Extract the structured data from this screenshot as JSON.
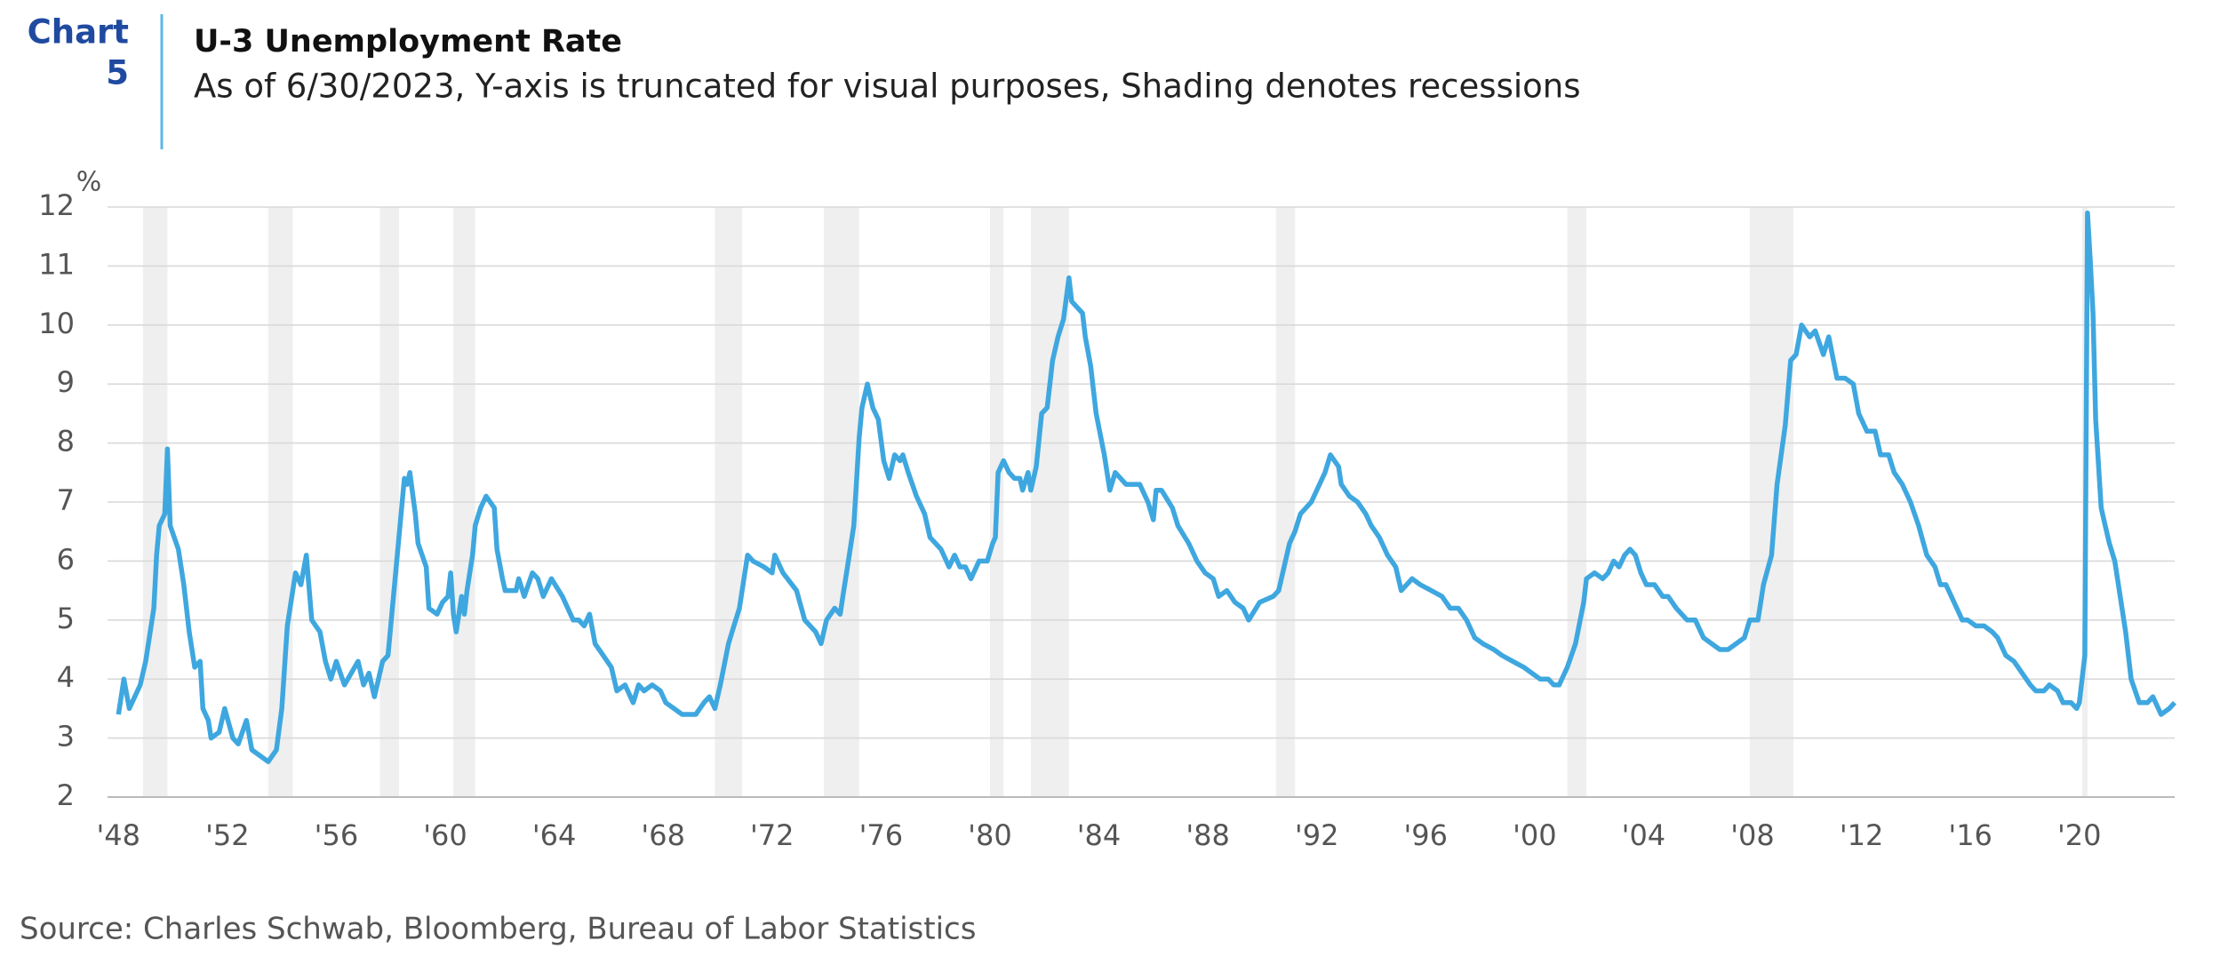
{
  "chart_data": {
    "type": "line",
    "chart_label": [
      "Chart",
      "5"
    ],
    "title": "U-3 Unemployment Rate",
    "subtitle": "As of 6/30/2023, Y-axis is truncated for visual purposes, Shading denotes recessions",
    "y_unit": "%",
    "source": "Source: Charles Schwab, Bloomberg, Bureau of Labor Statistics",
    "color": "#3fa7df",
    "recession_color": "#efefef",
    "grid": true,
    "xlim": [
      1947.6,
      2023.5
    ],
    "ylim": [
      2,
      12
    ],
    "yticks": [
      2,
      3,
      4,
      5,
      6,
      7,
      8,
      9,
      10,
      11,
      12
    ],
    "xticks": [
      {
        "value": 1948,
        "label": "'48"
      },
      {
        "value": 1952,
        "label": "'52"
      },
      {
        "value": 1956,
        "label": "'56"
      },
      {
        "value": 1960,
        "label": "'60"
      },
      {
        "value": 1964,
        "label": "'64"
      },
      {
        "value": 1968,
        "label": "'68"
      },
      {
        "value": 1972,
        "label": "'72"
      },
      {
        "value": 1976,
        "label": "'76"
      },
      {
        "value": 1980,
        "label": "'80"
      },
      {
        "value": 1984,
        "label": "'84"
      },
      {
        "value": 1988,
        "label": "'88"
      },
      {
        "value": 1992,
        "label": "'92"
      },
      {
        "value": 1996,
        "label": "'96"
      },
      {
        "value": 2000,
        "label": "'00"
      },
      {
        "value": 2004,
        "label": "'04"
      },
      {
        "value": 2008,
        "label": "'08"
      },
      {
        "value": 2012,
        "label": "'12"
      },
      {
        "value": 2016,
        "label": "'16"
      },
      {
        "value": 2020,
        "label": "'20"
      }
    ],
    "recessions": [
      [
        1948.9,
        1949.8
      ],
      [
        1953.5,
        1954.4
      ],
      [
        1957.6,
        1958.3
      ],
      [
        1960.3,
        1961.1
      ],
      [
        1969.9,
        1970.9
      ],
      [
        1973.9,
        1975.2
      ],
      [
        1980.0,
        1980.5
      ],
      [
        1981.5,
        1982.9
      ],
      [
        1990.5,
        1991.2
      ],
      [
        2001.2,
        2001.9
      ],
      [
        2007.9,
        2009.5
      ],
      [
        2020.1,
        2020.3
      ]
    ],
    "x": [
      1948.0,
      1948.2,
      1948.4,
      1948.8,
      1949.0,
      1949.3,
      1949.4,
      1949.5,
      1949.7,
      1949.8,
      1949.9,
      1950.2,
      1950.4,
      1950.6,
      1950.8,
      1951.0,
      1951.1,
      1951.3,
      1951.4,
      1951.7,
      1951.9,
      1952.2,
      1952.4,
      1952.7,
      1952.9,
      1953.2,
      1953.5,
      1953.8,
      1954.0,
      1954.2,
      1954.5,
      1954.7,
      1954.9,
      1955.1,
      1955.4,
      1955.6,
      1955.8,
      1956.0,
      1956.3,
      1956.8,
      1957.0,
      1957.2,
      1957.4,
      1957.7,
      1957.9,
      1958.2,
      1958.5,
      1958.6,
      1958.7,
      1958.9,
      1959.0,
      1959.3,
      1959.4,
      1959.7,
      1959.9,
      1960.1,
      1960.2,
      1960.3,
      1960.4,
      1960.6,
      1960.7,
      1960.8,
      1961.0,
      1961.1,
      1961.3,
      1961.5,
      1961.8,
      1961.9,
      1962.1,
      1962.2,
      1962.6,
      1962.7,
      1962.9,
      1963.2,
      1963.4,
      1963.6,
      1963.9,
      1964.3,
      1964.5,
      1964.7,
      1964.9,
      1965.1,
      1965.3,
      1965.5,
      1965.8,
      1966.1,
      1966.3,
      1966.6,
      1966.9,
      1967.1,
      1967.3,
      1967.6,
      1967.9,
      1968.1,
      1968.4,
      1968.7,
      1969.2,
      1969.5,
      1969.7,
      1969.9,
      1970.1,
      1970.4,
      1970.6,
      1970.8,
      1971.0,
      1971.1,
      1971.3,
      1971.7,
      1972.0,
      1972.1,
      1972.4,
      1972.9,
      1973.2,
      1973.6,
      1973.8,
      1974.0,
      1974.3,
      1974.5,
      1974.6,
      1974.8,
      1975.0,
      1975.2,
      1975.3,
      1975.5,
      1975.7,
      1975.9,
      1976.1,
      1976.3,
      1976.5,
      1976.7,
      1976.8,
      1977.0,
      1977.3,
      1977.6,
      1977.8,
      1978.2,
      1978.4,
      1978.5,
      1978.7,
      1978.9,
      1979.1,
      1979.3,
      1979.6,
      1979.9,
      1980.1,
      1980.2,
      1980.3,
      1980.5,
      1980.7,
      1980.9,
      1981.1,
      1981.2,
      1981.4,
      1981.5,
      1981.7,
      1981.9,
      1982.1,
      1982.3,
      1982.5,
      1982.7,
      1982.9,
      1983.0,
      1983.4,
      1983.5,
      1983.7,
      1983.9,
      1984.2,
      1984.4,
      1984.6,
      1985.0,
      1985.5,
      1985.8,
      1986.0,
      1986.1,
      1986.3,
      1986.7,
      1986.9,
      1987.3,
      1987.6,
      1987.9,
      1988.2,
      1988.4,
      1988.7,
      1989.0,
      1989.3,
      1989.5,
      1989.9,
      1990.4,
      1990.6,
      1990.8,
      1991.0,
      1991.2,
      1991.4,
      1991.8,
      1992.1,
      1992.3,
      1992.5,
      1992.8,
      1992.9,
      1993.2,
      1993.5,
      1993.8,
      1994.0,
      1994.3,
      1994.6,
      1994.9,
      1995.1,
      1995.3,
      1995.5,
      1995.8,
      1996.2,
      1996.6,
      1996.9,
      1997.2,
      1997.5,
      1997.8,
      1998.1,
      1998.5,
      1998.8,
      1999.2,
      1999.6,
      1999.9,
      2000.2,
      2000.5,
      2000.7,
      2000.9,
      2001.2,
      2001.5,
      2001.8,
      2001.9,
      2002.2,
      2002.5,
      2002.7,
      2002.9,
      2003.1,
      2003.3,
      2003.5,
      2003.7,
      2003.9,
      2004.1,
      2004.4,
      2004.7,
      2004.9,
      2005.2,
      2005.6,
      2005.9,
      2006.2,
      2006.5,
      2006.8,
      2007.1,
      2007.4,
      2007.7,
      2007.9,
      2008.2,
      2008.4,
      2008.7,
      2008.9,
      2009.2,
      2009.4,
      2009.6,
      2009.8,
      2010.1,
      2010.3,
      2010.6,
      2010.8,
      2011.1,
      2011.4,
      2011.7,
      2011.9,
      2012.2,
      2012.5,
      2012.7,
      2013.0,
      2013.2,
      2013.5,
      2013.8,
      2014.1,
      2014.4,
      2014.7,
      2014.9,
      2015.1,
      2015.4,
      2015.7,
      2015.9,
      2016.2,
      2016.5,
      2016.8,
      2017.0,
      2017.3,
      2017.6,
      2017.9,
      2018.2,
      2018.4,
      2018.7,
      2018.9,
      2019.2,
      2019.4,
      2019.7,
      2019.9,
      2020.0,
      2020.2,
      2020.3,
      2020.4,
      2020.5,
      2020.6,
      2020.8,
      2020.9,
      2021.1,
      2021.3,
      2021.5,
      2021.7,
      2021.9,
      2022.2,
      2022.5,
      2022.7,
      2023.0,
      2023.3,
      2023.5
    ],
    "values": [
      3.4,
      4.0,
      3.5,
      3.9,
      4.3,
      5.2,
      6.1,
      6.6,
      6.8,
      7.9,
      6.6,
      6.2,
      5.6,
      4.8,
      4.2,
      4.3,
      3.5,
      3.3,
      3.0,
      3.1,
      3.5,
      3.0,
      2.9,
      3.3,
      2.8,
      2.7,
      2.6,
      2.8,
      3.5,
      4.9,
      5.8,
      5.6,
      6.1,
      5.0,
      4.8,
      4.3,
      4.0,
      4.3,
      3.9,
      4.3,
      3.9,
      4.1,
      3.7,
      4.3,
      4.4,
      5.9,
      7.4,
      7.3,
      7.5,
      6.8,
      6.3,
      5.9,
      5.2,
      5.1,
      5.3,
      5.4,
      5.8,
      5.1,
      4.8,
      5.4,
      5.1,
      5.5,
      6.1,
      6.6,
      6.9,
      7.1,
      6.9,
      6.2,
      5.7,
      5.5,
      5.5,
      5.7,
      5.4,
      5.8,
      5.7,
      5.4,
      5.7,
      5.4,
      5.2,
      5.0,
      5.0,
      4.9,
      5.1,
      4.6,
      4.4,
      4.2,
      3.8,
      3.9,
      3.6,
      3.9,
      3.8,
      3.9,
      3.8,
      3.6,
      3.5,
      3.4,
      3.4,
      3.6,
      3.7,
      3.5,
      3.9,
      4.6,
      4.9,
      5.2,
      5.8,
      6.1,
      6.0,
      5.9,
      5.8,
      6.1,
      5.8,
      5.5,
      5.0,
      4.8,
      4.6,
      5.0,
      5.2,
      5.1,
      5.4,
      6.0,
      6.6,
      8.1,
      8.6,
      9.0,
      8.6,
      8.4,
      7.7,
      7.4,
      7.8,
      7.7,
      7.8,
      7.5,
      7.1,
      6.8,
      6.4,
      6.2,
      6.0,
      5.9,
      6.1,
      5.9,
      5.9,
      5.7,
      6.0,
      6.0,
      6.3,
      6.4,
      7.5,
      7.7,
      7.5,
      7.4,
      7.4,
      7.2,
      7.5,
      7.2,
      7.6,
      8.5,
      8.6,
      9.4,
      9.8,
      10.1,
      10.8,
      10.4,
      10.2,
      9.8,
      9.3,
      8.5,
      7.8,
      7.2,
      7.5,
      7.3,
      7.3,
      7.0,
      6.7,
      7.2,
      7.2,
      6.9,
      6.6,
      6.3,
      6.0,
      5.8,
      5.7,
      5.4,
      5.5,
      5.3,
      5.2,
      5.0,
      5.3,
      5.4,
      5.5,
      5.9,
      6.3,
      6.5,
      6.8,
      7.0,
      7.3,
      7.5,
      7.8,
      7.6,
      7.3,
      7.1,
      7.0,
      6.8,
      6.6,
      6.4,
      6.1,
      5.9,
      5.5,
      5.6,
      5.7,
      5.6,
      5.5,
      5.4,
      5.2,
      5.2,
      5.0,
      4.7,
      4.6,
      4.5,
      4.4,
      4.3,
      4.2,
      4.1,
      4.0,
      4.0,
      3.9,
      3.9,
      4.2,
      4.6,
      5.3,
      5.7,
      5.8,
      5.7,
      5.8,
      6.0,
      5.9,
      6.1,
      6.2,
      6.1,
      5.8,
      5.6,
      5.6,
      5.4,
      5.4,
      5.2,
      5.0,
      5.0,
      4.7,
      4.6,
      4.5,
      4.5,
      4.6,
      4.7,
      5.0,
      5.0,
      5.6,
      6.1,
      7.3,
      8.3,
      9.4,
      9.5,
      10.0,
      9.8,
      9.9,
      9.5,
      9.8,
      9.1,
      9.1,
      9.0,
      8.5,
      8.2,
      8.2,
      7.8,
      7.8,
      7.5,
      7.3,
      7.0,
      6.6,
      6.1,
      5.9,
      5.6,
      5.6,
      5.3,
      5.0,
      5.0,
      4.9,
      4.9,
      4.8,
      4.7,
      4.4,
      4.3,
      4.1,
      3.9,
      3.8,
      3.8,
      3.9,
      3.8,
      3.6,
      3.6,
      3.5,
      3.6,
      4.4,
      11.9,
      11.1,
      10.2,
      8.4,
      6.9,
      6.7,
      6.3,
      6.0,
      5.4,
      4.8,
      4.0,
      3.6,
      3.6,
      3.7,
      3.4,
      3.5,
      3.6
    ]
  }
}
